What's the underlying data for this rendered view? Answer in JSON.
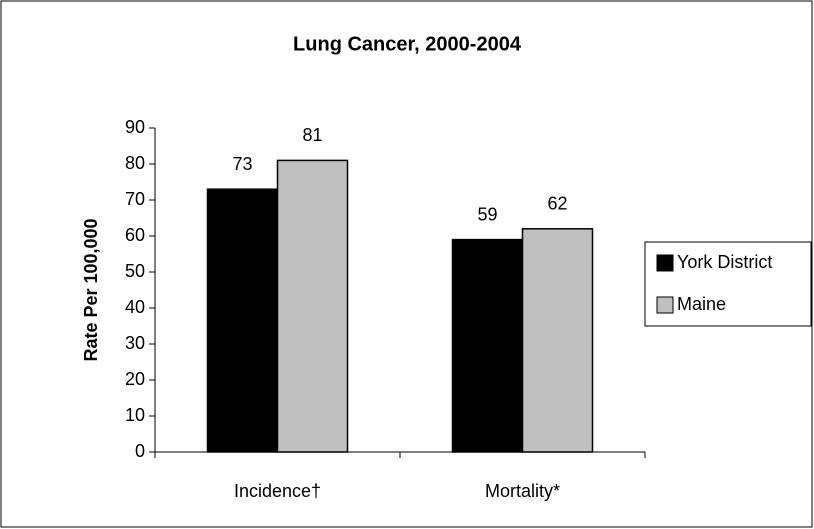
{
  "chart_data": {
    "type": "bar",
    "title": "Lung Cancer, 2000-2004",
    "y_label": "Rate Per 100,000",
    "categories": [
      "Incidence†",
      "Mortality*"
    ],
    "series": [
      {
        "name": "York District",
        "color": "#000000",
        "values": [
          73,
          59
        ]
      },
      {
        "name": "Maine",
        "color": "#c0c0c0",
        "values": [
          81,
          62
        ]
      }
    ],
    "ylim": [
      0,
      90
    ],
    "yticks": [
      0,
      10,
      20,
      30,
      40,
      50,
      60,
      70,
      80,
      90
    ],
    "grid": false,
    "legend": "right"
  }
}
